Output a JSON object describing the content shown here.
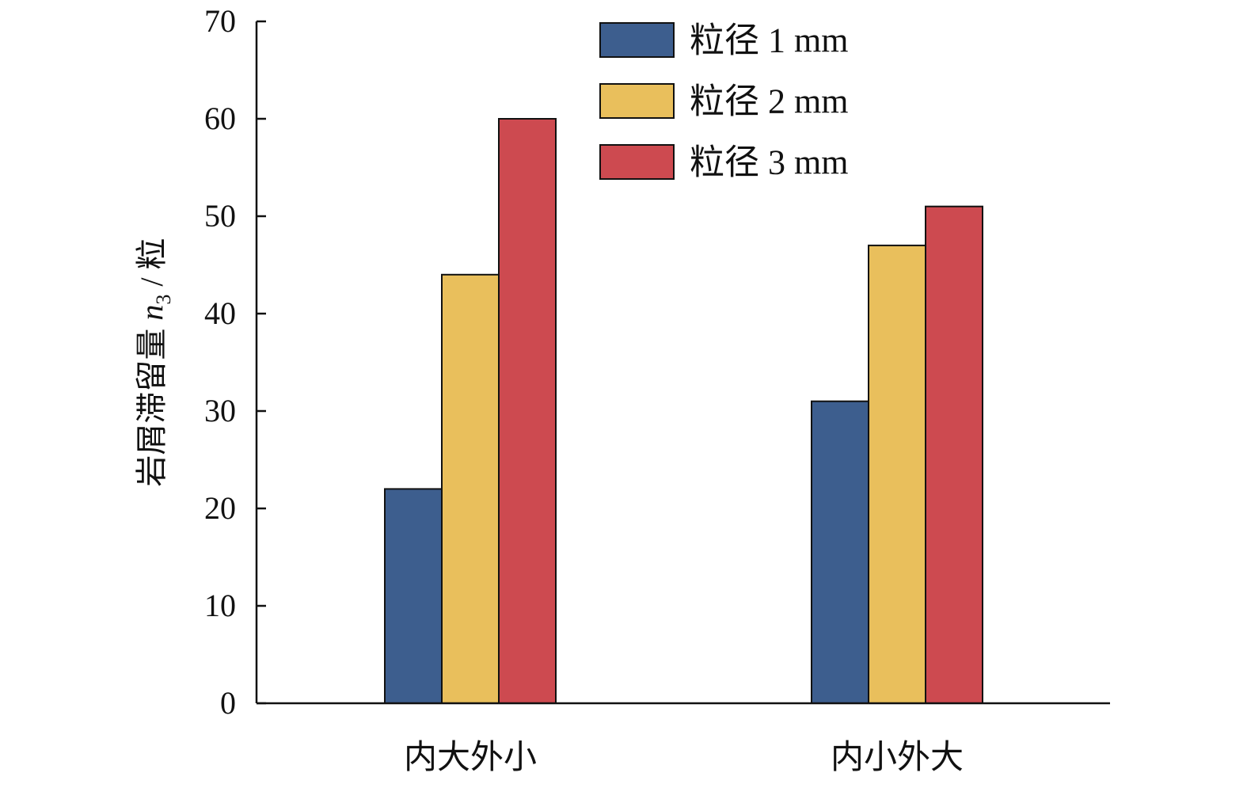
{
  "chart_data": {
    "type": "bar",
    "categories": [
      "内大外小",
      "内小外大"
    ],
    "series": [
      {
        "name": "粒径 1 mm",
        "values": [
          22,
          31
        ],
        "color": "#3d5e8e"
      },
      {
        "name": "粒径 2 mm",
        "values": [
          44,
          47
        ],
        "color": "#e9bf5c"
      },
      {
        "name": "粒径 3 mm",
        "values": [
          60,
          51
        ],
        "color": "#cd4a50"
      }
    ],
    "title": "",
    "xlabel": "",
    "ylabel": {
      "main": "岩屑滞留量 ",
      "var": "n",
      "sub": "3",
      "unit": " / 粒"
    },
    "ylim": [
      0,
      70
    ],
    "yticks": [
      0,
      10,
      20,
      30,
      40,
      50,
      60,
      70
    ],
    "grid": false,
    "legend_position": "top-center"
  }
}
